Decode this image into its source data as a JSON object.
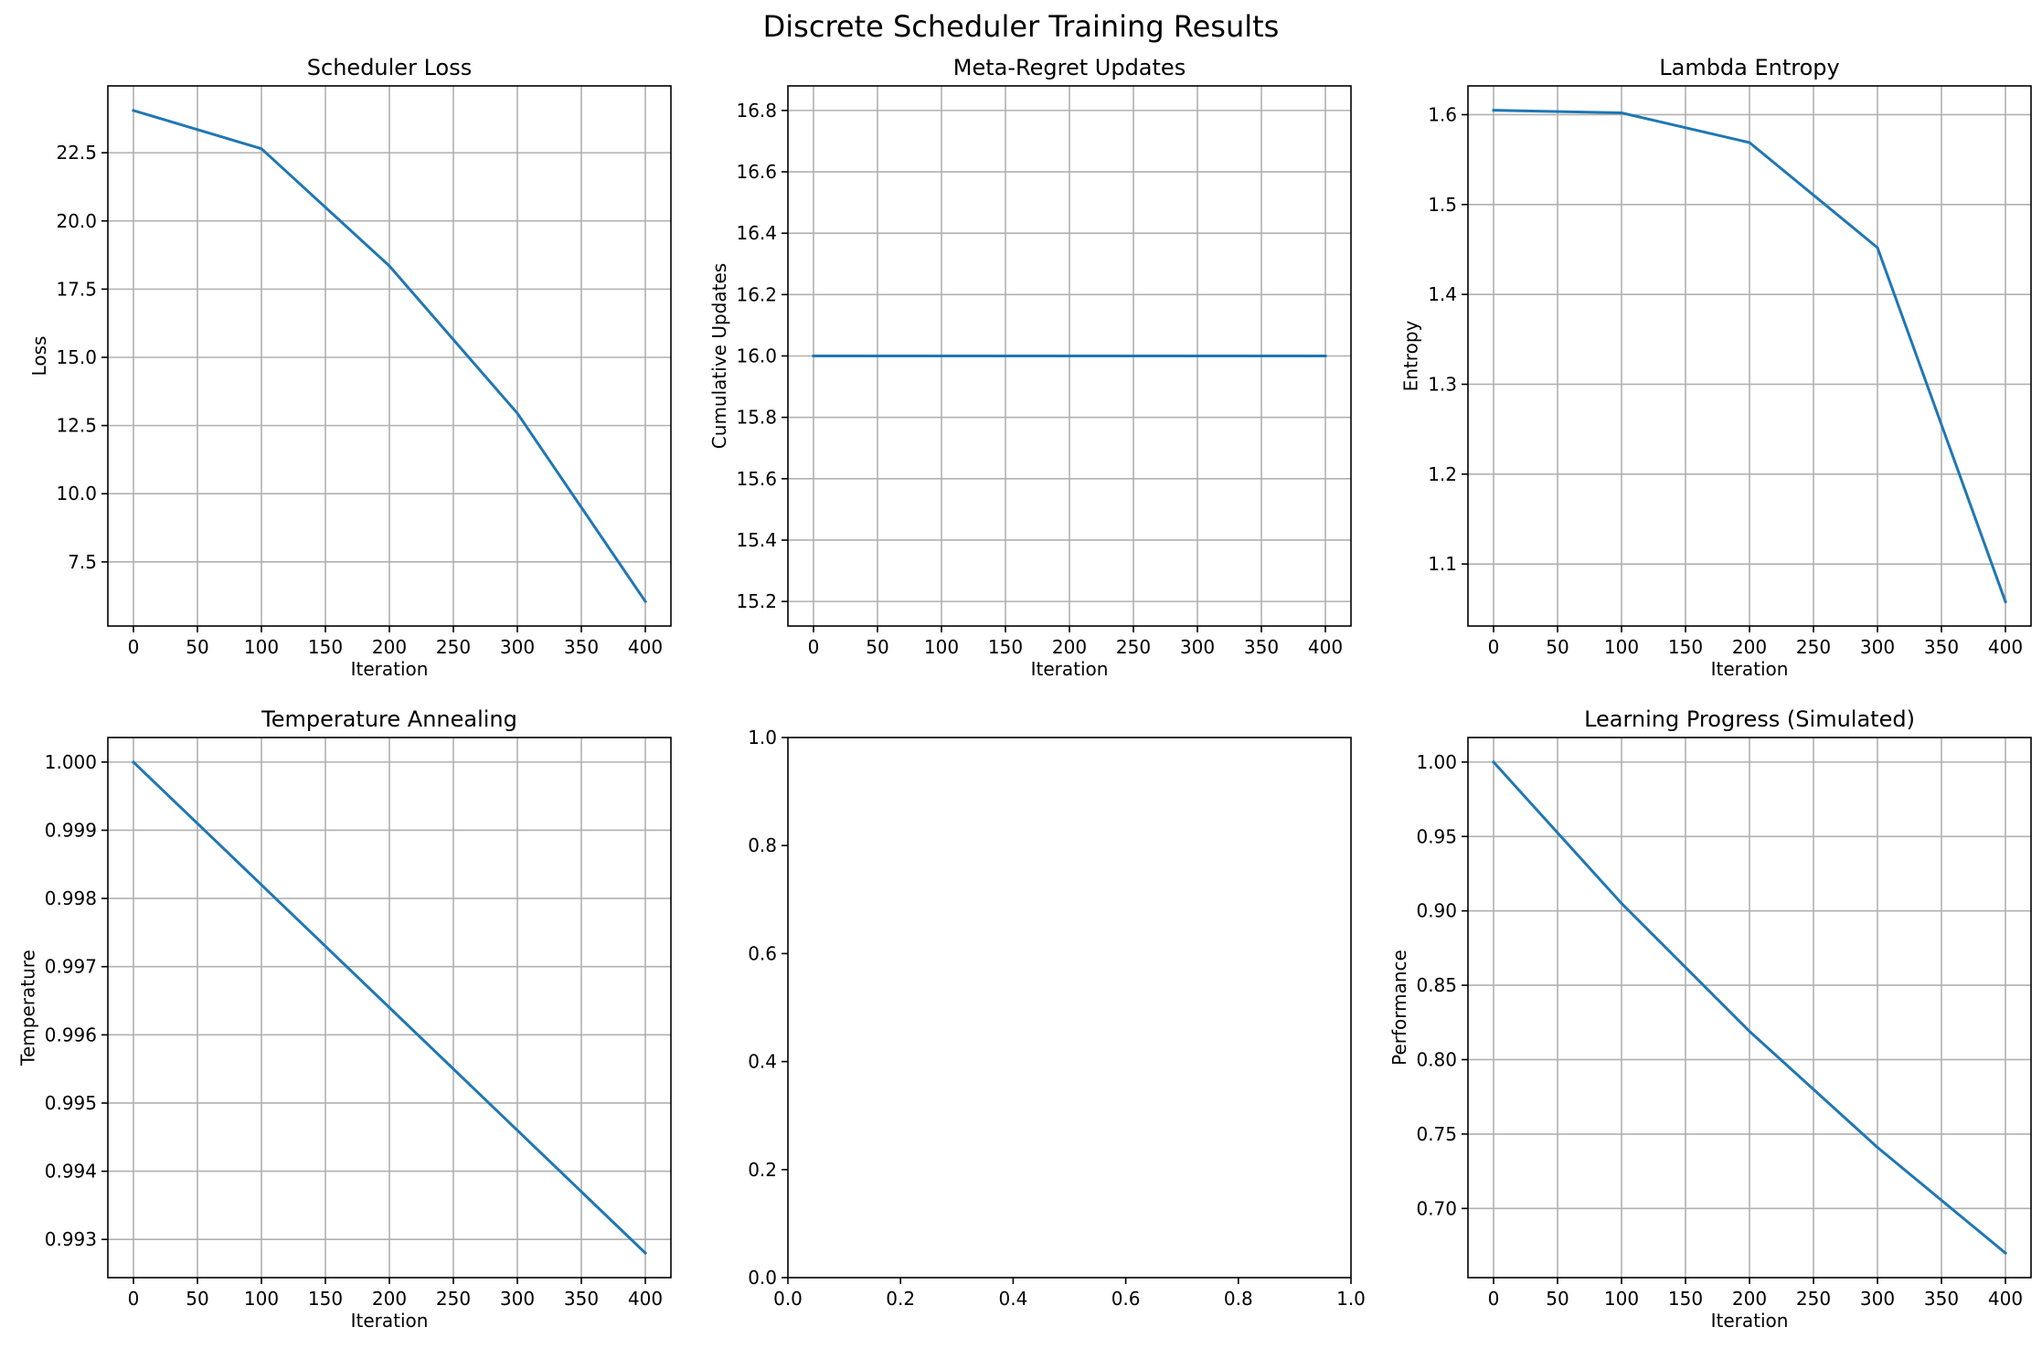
{
  "figure_title": "Discrete Scheduler Training Results",
  "colors": {
    "series": "#1f77b4",
    "grid": "#b0b0b0",
    "axis": "#000000"
  },
  "chart_data": [
    {
      "type": "line",
      "title": "Scheduler Loss",
      "xlabel": "Iteration",
      "ylabel": "Loss",
      "grid": true,
      "xlim": [
        -20,
        420
      ],
      "ylim": [
        5.15,
        24.95
      ],
      "xticks": [
        0,
        50,
        100,
        150,
        200,
        250,
        300,
        350,
        400
      ],
      "yticks": [
        7.5,
        10.0,
        12.5,
        15.0,
        17.5,
        20.0,
        22.5
      ],
      "ytick_decimals": 1,
      "series": [
        {
          "x": [
            0,
            100,
            200,
            300,
            400
          ],
          "y": [
            24.05,
            22.65,
            18.35,
            12.95,
            6.05
          ]
        }
      ]
    },
    {
      "type": "line",
      "title": "Meta-Regret Updates",
      "xlabel": "Iteration",
      "ylabel": "Cumulative Updates",
      "grid": true,
      "xlim": [
        -20,
        420
      ],
      "ylim": [
        15.12,
        16.88
      ],
      "xticks": [
        0,
        50,
        100,
        150,
        200,
        250,
        300,
        350,
        400
      ],
      "yticks": [
        15.2,
        15.4,
        15.6,
        15.8,
        16.0,
        16.2,
        16.4,
        16.6,
        16.8
      ],
      "ytick_decimals": 1,
      "series": [
        {
          "x": [
            0,
            100,
            200,
            300,
            400
          ],
          "y": [
            16,
            16,
            16,
            16,
            16
          ]
        }
      ]
    },
    {
      "type": "line",
      "title": "Lambda Entropy",
      "xlabel": "Iteration",
      "ylabel": "Entropy",
      "grid": true,
      "xlim": [
        -20,
        420
      ],
      "ylim": [
        1.031,
        1.632
      ],
      "xticks": [
        0,
        50,
        100,
        150,
        200,
        250,
        300,
        350,
        400
      ],
      "yticks": [
        1.1,
        1.2,
        1.3,
        1.4,
        1.5,
        1.6
      ],
      "ytick_decimals": 1,
      "series": [
        {
          "x": [
            0,
            100,
            200,
            300,
            400
          ],
          "y": [
            1.605,
            1.602,
            1.569,
            1.452,
            1.058
          ]
        }
      ]
    },
    {
      "type": "line",
      "title": "Temperature Annealing",
      "xlabel": "Iteration",
      "ylabel": "Temperature",
      "grid": true,
      "xlim": [
        -20,
        420
      ],
      "ylim": [
        0.99244,
        1.00036
      ],
      "xticks": [
        0,
        50,
        100,
        150,
        200,
        250,
        300,
        350,
        400
      ],
      "yticks": [
        0.993,
        0.994,
        0.995,
        0.996,
        0.997,
        0.998,
        0.999,
        1.0
      ],
      "ytick_decimals": 3,
      "series": [
        {
          "x": [
            0,
            100,
            200,
            300,
            400
          ],
          "y": [
            1.0,
            0.9982,
            0.9964,
            0.9946,
            0.9928
          ]
        }
      ]
    },
    {
      "type": "line",
      "title": "",
      "xlabel": "",
      "ylabel": "",
      "grid": false,
      "xlim": [
        0,
        1
      ],
      "ylim": [
        0,
        1
      ],
      "xticks": [
        0.0,
        0.2,
        0.4,
        0.6,
        0.8,
        1.0
      ],
      "yticks": [
        0.0,
        0.2,
        0.4,
        0.6,
        0.8,
        1.0
      ],
      "xtick_decimals": 1,
      "ytick_decimals": 1,
      "series": []
    },
    {
      "type": "line",
      "title": "Learning Progress (Simulated)",
      "xlabel": "Iteration",
      "ylabel": "Performance",
      "grid": true,
      "xlim": [
        -20,
        420
      ],
      "ylim": [
        0.6535,
        1.0165
      ],
      "xticks": [
        0,
        50,
        100,
        150,
        200,
        250,
        300,
        350,
        400
      ],
      "yticks": [
        0.7,
        0.75,
        0.8,
        0.85,
        0.9,
        0.95,
        1.0
      ],
      "ytick_decimals": 2,
      "series": [
        {
          "x": [
            0,
            100,
            200,
            300,
            400
          ],
          "y": [
            1.0,
            0.905,
            0.819,
            0.741,
            0.67
          ]
        }
      ]
    }
  ]
}
